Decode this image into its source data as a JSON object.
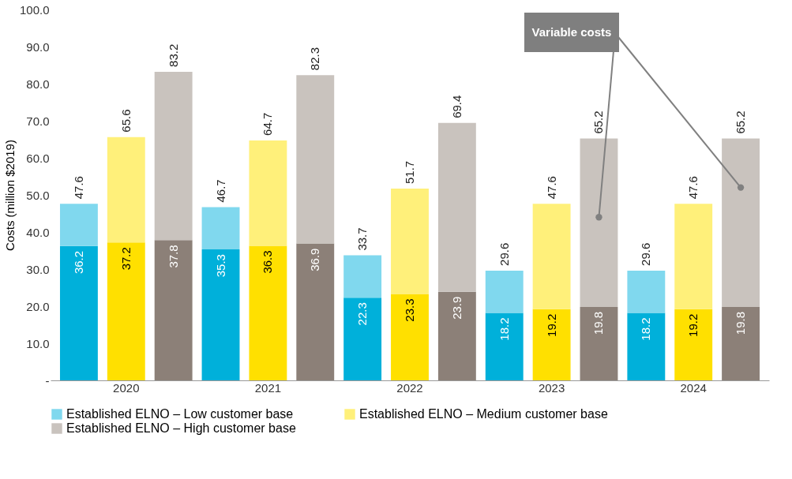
{
  "chart_data": {
    "type": "bar",
    "stacked": true,
    "ylabel": "Costs (million $2019)",
    "categories": [
      null,
      "2020",
      null,
      null,
      "2021",
      null,
      null,
      "2022",
      null,
      null,
      "2023",
      null,
      null,
      "2024",
      null
    ],
    "series": [
      {
        "color": "#00b0da",
        "values": [
          36.2,
          null,
          null,
          35.3,
          null,
          null,
          22.3,
          null,
          null,
          18.2,
          null,
          null,
          18.2,
          null,
          null
        ],
        "value_labels": [
          "36.2",
          null,
          null,
          "35.3",
          null,
          null,
          "22.3",
          null,
          null,
          "18.2",
          null,
          null,
          "18.2",
          null,
          null
        ]
      },
      {
        "name": "Established ELNO – Low customer base",
        "color": "#80d8ee",
        "values": [
          11.4,
          null,
          null,
          11.4,
          null,
          null,
          11.4,
          null,
          null,
          11.4,
          null,
          null,
          11.4,
          null,
          null
        ]
      },
      {
        "color": "#ffe000",
        "values": [
          null,
          37.2,
          null,
          null,
          36.3,
          null,
          null,
          23.3,
          null,
          null,
          19.2,
          null,
          null,
          19.2,
          null
        ],
        "value_labels": [
          null,
          "37.2",
          null,
          null,
          "36.3",
          null,
          null,
          "23.3",
          null,
          null,
          "19.2",
          null,
          null,
          "19.2",
          null
        ]
      },
      {
        "name": "Established ELNO – Medium customer base",
        "color": "#fff07a",
        "values": [
          null,
          28.4,
          null,
          null,
          28.4,
          null,
          null,
          28.4,
          null,
          null,
          28.4,
          null,
          null,
          28.4,
          null
        ]
      },
      {
        "color": "#8c8078",
        "values": [
          null,
          null,
          37.8,
          null,
          null,
          36.9,
          null,
          null,
          23.9,
          null,
          null,
          19.8,
          null,
          null,
          19.8
        ],
        "value_labels": [
          null,
          null,
          "37.8",
          null,
          null,
          "36.9",
          null,
          null,
          "23.9",
          null,
          null,
          "19.8",
          null,
          null,
          "19.8"
        ]
      },
      {
        "name": "Established ELNO – High customer base",
        "color": "#c9c3be",
        "values": [
          null,
          null,
          45.4,
          null,
          null,
          45.4,
          null,
          null,
          45.5,
          null,
          null,
          45.4,
          null,
          null,
          45.4
        ]
      }
    ],
    "totals": [
      "47.6",
      "65.6",
      "83.2",
      "46.7",
      "64.7",
      "82.3",
      "33.7",
      "51.7",
      "69.4",
      "29.6",
      "47.6",
      "65.2",
      "29.6",
      "47.6",
      "65.2"
    ],
    "ylim": [
      0,
      100
    ],
    "yticks": [
      {
        "value": 0,
        "label": "-"
      },
      {
        "value": 10,
        "label": "10.0"
      },
      {
        "value": 20,
        "label": "20.0"
      },
      {
        "value": 30,
        "label": "30.0"
      },
      {
        "value": 40,
        "label": "40.0"
      },
      {
        "value": 50,
        "label": "50.0"
      },
      {
        "value": 60,
        "label": "60.0"
      },
      {
        "value": 70,
        "label": "70.0"
      },
      {
        "value": 80,
        "label": "80.0"
      },
      {
        "value": 90,
        "label": "90.0"
      },
      {
        "value": 100,
        "label": "100.0"
      }
    ],
    "grid": false,
    "legend": "bottom",
    "annotations": [
      "Variable costs"
    ]
  }
}
